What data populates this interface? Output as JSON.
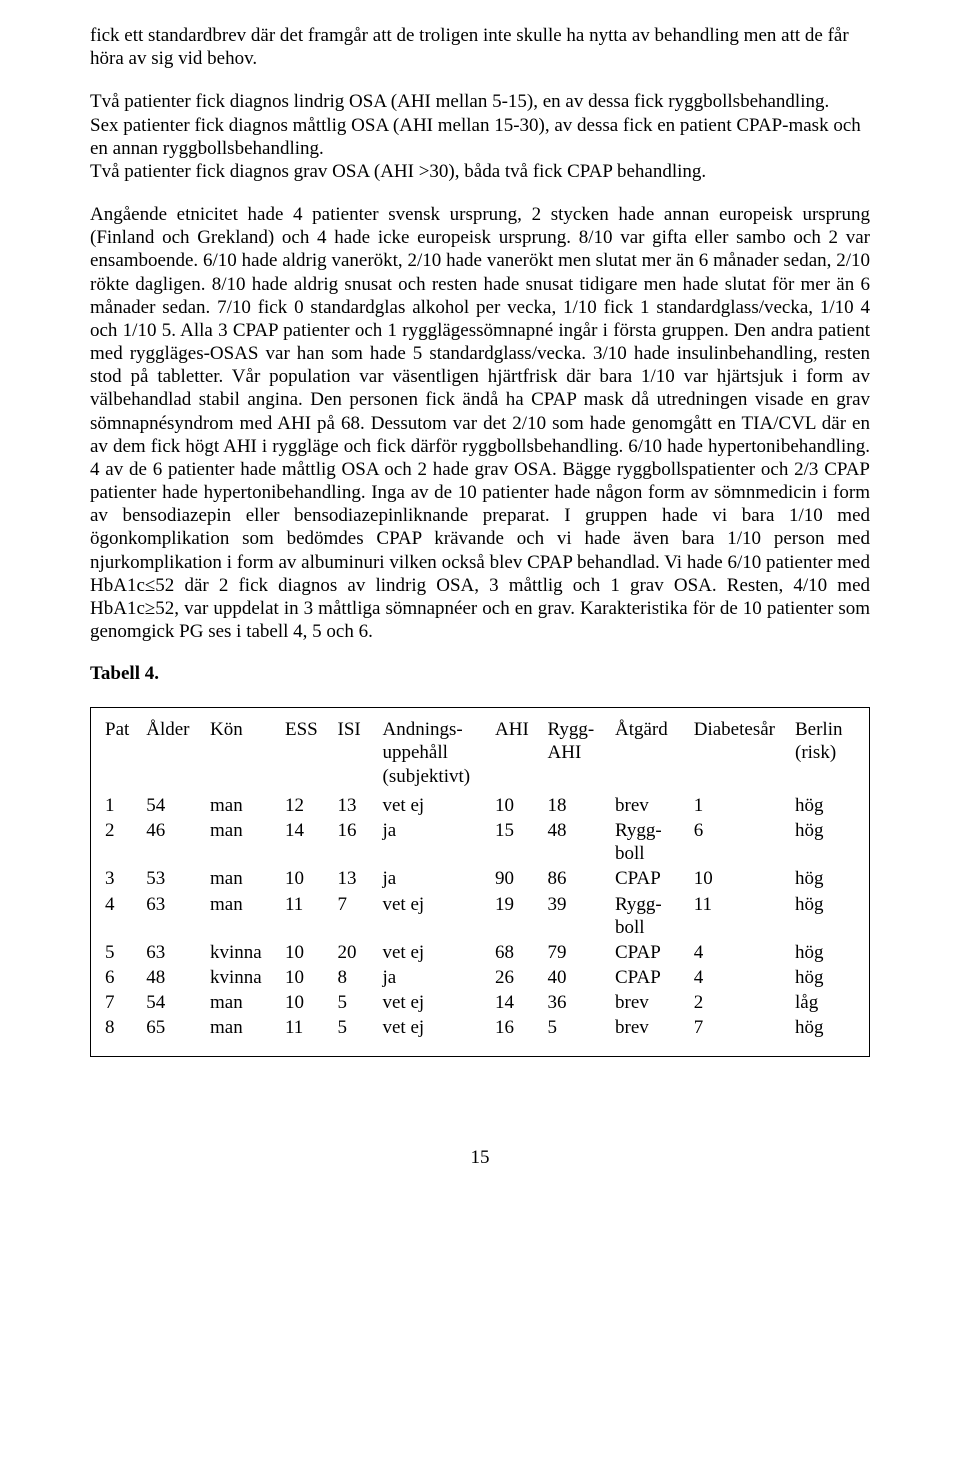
{
  "paragraphs": {
    "p1": "fick ett standardbrev där det framgår att de troligen inte skulle ha nytta av behandling men att de får höra av sig vid behov.",
    "p2a": "Två patienter fick diagnos lindrig OSA (AHI mellan 5-15), en av dessa fick ryggbollsbehandling.",
    "p2b": "Sex patienter fick diagnos måttlig OSA (AHI mellan 15-30), av dessa fick en patient CPAP-mask och en annan ryggbollsbehandling.",
    "p2c": "Två patienter fick diagnos grav OSA (AHI >30), båda två fick CPAP behandling.",
    "p3": "Angående etnicitet hade 4 patienter svensk ursprung, 2 stycken hade annan europeisk ursprung (Finland och Grekland) och 4 hade icke europeisk ursprung. 8/10 var gifta eller sambo och 2 var ensamboende. 6/10 hade aldrig vanerökt, 2/10 hade vanerökt men slutat mer än 6 månader sedan, 2/10 rökte dagligen. 8/10 hade aldrig snusat och resten hade snusat tidigare men hade slutat för mer än 6 månader sedan. 7/10 fick 0 standardglas alkohol per vecka, 1/10 fick 1 standardglass/vecka, 1/10 4 och 1/10 5. Alla 3 CPAP patienter och 1 rygglägessömnapné ingår i första gruppen. Den andra patient med ryggläges-OSAS var han som hade 5 standardglass/vecka. 3/10 hade insulinbehandling, resten stod på tabletter. Vår population var väsentligen hjärtfrisk där bara 1/10 var hjärtsjuk i form av välbehandlad stabil angina. Den personen fick ändå ha CPAP mask då utredningen visade en grav sömnapnésyndrom med AHI på 68. Dessutom var det 2/10 som hade genomgått en TIA/CVL där en av dem fick högt AHI i ryggläge och fick därför ryggbollsbehandling. 6/10 hade hypertonibehandling. 4 av de 6 patienter hade måttlig OSA och 2 hade grav OSA. Bägge ryggbollspatienter och 2/3 CPAP patienter hade hypertonibehandling. Inga av de 10 patienter hade någon form av sömnmedicin i form av bensodiazepin eller bensodiazepinliknande preparat. I gruppen hade vi bara 1/10 med ögonkomplikation som bedömdes CPAP krävande och vi hade även bara 1/10 person med njurkomplikation i form av albuminuri vilken också blev CPAP behandlad. Vi hade 6/10 patienter med HbA1c≤52 där 2 fick diagnos av lindrig OSA, 3 måttlig och 1 grav OSA. Resten, 4/10 med HbA1c≥52, var uppdelat in 3 måttliga sömnapnéer och en grav. Karakteristika för de 10 patienter som genomgick PG ses i tabell 4, 5 och 6."
  },
  "table": {
    "title": "Tabell 4.",
    "columns": [
      "Pat",
      "Ålder",
      "Kön",
      "ESS",
      "ISI",
      "Andnings-\nuppehåll\n(subjektivt)",
      "AHI",
      "Rygg-\nAHI",
      "Åtgärd",
      "Diabetesår",
      "Berlin\n(risk)"
    ],
    "rows": [
      [
        "1",
        "54",
        "man",
        "12",
        "13",
        "vet ej",
        "10",
        "18",
        "brev",
        "1",
        "hög"
      ],
      [
        "2",
        "46",
        "man",
        "14",
        "16",
        "ja",
        "15",
        "48",
        "Rygg-\nboll",
        "6",
        "hög"
      ],
      [
        "3",
        "53",
        "man",
        "10",
        "13",
        "ja",
        "90",
        "86",
        "CPAP",
        "10",
        "hög"
      ],
      [
        "4",
        "63",
        "man",
        "11",
        "7",
        "vet ej",
        "19",
        "39",
        "Rygg-\nboll",
        "11",
        "hög"
      ],
      [
        "5",
        "63",
        "kvinna",
        "10",
        "20",
        "vet ej",
        "68",
        "79",
        "CPAP",
        "4",
        "hög"
      ],
      [
        "6",
        "48",
        "kvinna",
        "10",
        "8",
        "ja",
        "26",
        "40",
        "CPAP",
        "4",
        "hög"
      ],
      [
        "7",
        "54",
        "man",
        "10",
        "5",
        "vet ej",
        "14",
        "36",
        "brev",
        "2",
        "låg"
      ],
      [
        "8",
        "65",
        "man",
        "11",
        "5",
        "vet ej",
        "16",
        "5",
        "brev",
        "7",
        "hög"
      ]
    ]
  },
  "pageNumber": "15"
}
